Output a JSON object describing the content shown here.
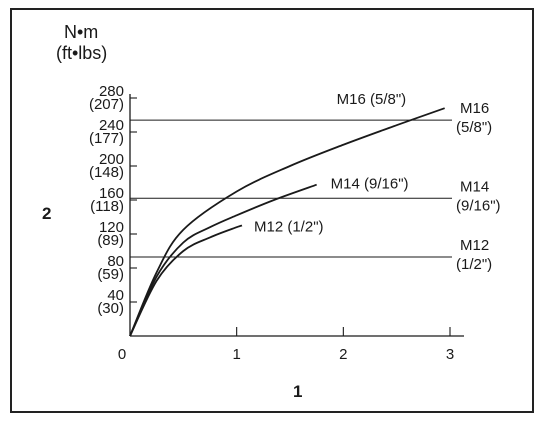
{
  "chart_data": {
    "type": "line",
    "y_unit_primary": "N•m",
    "y_unit_secondary": "(ft•lbs)",
    "y_axis_marker": "2",
    "x_axis_marker": "1",
    "xlim": [
      0,
      3
    ],
    "ylim": [
      0,
      280
    ],
    "x_ticks": [
      {
        "value": 0,
        "label": "0"
      },
      {
        "value": 1,
        "label": "1"
      },
      {
        "value": 2,
        "label": "2"
      },
      {
        "value": 3,
        "label": "3"
      }
    ],
    "y_ticks": [
      {
        "value": 40,
        "label": "40",
        "sublabel": "(30)"
      },
      {
        "value": 80,
        "label": "80",
        "sublabel": "(59)"
      },
      {
        "value": 120,
        "label": "120",
        "sublabel": "(89)"
      },
      {
        "value": 160,
        "label": "160",
        "sublabel": "(118)"
      },
      {
        "value": 200,
        "label": "200",
        "sublabel": "(148)"
      },
      {
        "value": 240,
        "label": "240",
        "sublabel": "(177)"
      },
      {
        "value": 280,
        "label": "280",
        "sublabel": "(207)"
      }
    ],
    "series": [
      {
        "name": "M16 (5/8\")",
        "color": "#1a1a1a",
        "points": [
          [
            0,
            0
          ],
          [
            0.25,
            75
          ],
          [
            0.5,
            125
          ],
          [
            1,
            170
          ],
          [
            1.5,
            200
          ],
          [
            2,
            225
          ],
          [
            2.5,
            248
          ],
          [
            2.95,
            268
          ]
        ]
      },
      {
        "name": "M14 (9/16\")",
        "color": "#1a1a1a",
        "points": [
          [
            0,
            0
          ],
          [
            0.25,
            70
          ],
          [
            0.5,
            110
          ],
          [
            0.75,
            128
          ],
          [
            1,
            142
          ],
          [
            1.35,
            160
          ],
          [
            1.75,
            178
          ]
        ]
      },
      {
        "name": "M12 (1/2\")",
        "color": "#1a1a1a",
        "points": [
          [
            0,
            0
          ],
          [
            0.25,
            65
          ],
          [
            0.5,
            100
          ],
          [
            0.75,
            116
          ],
          [
            1,
            128
          ],
          [
            1.05,
            130
          ]
        ]
      }
    ],
    "reference_lines": [
      {
        "value": 254,
        "label_line1": "M16",
        "label_line2": "(5/8\")"
      },
      {
        "value": 162,
        "label_line1": "M14",
        "label_line2": "(9/16\")"
      },
      {
        "value": 93,
        "label_line1": "M12",
        "label_line2": "(1/2\")"
      }
    ]
  }
}
